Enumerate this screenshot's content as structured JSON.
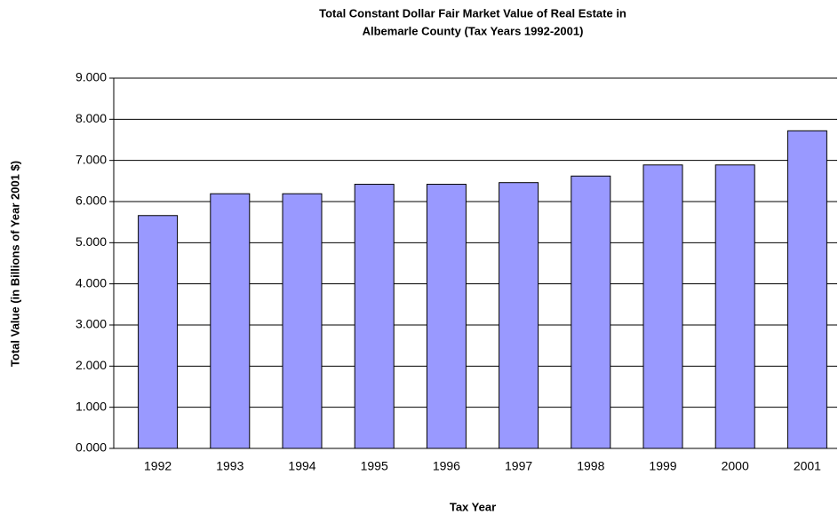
{
  "chart_data": {
    "type": "bar",
    "title": [
      "Total Constant Dollar Fair Market Value of Real Estate in",
      "Albemarle County (Tax Years 1992-2001)"
    ],
    "x_label": "Tax Year",
    "y_label": "Total Value (in Billions of Year 2001 $)",
    "categories": [
      "1992",
      "1993",
      "1994",
      "1995",
      "1996",
      "1997",
      "1998",
      "1999",
      "2000",
      "2001"
    ],
    "values": [
      5.66,
      6.19,
      6.19,
      6.42,
      6.42,
      6.46,
      6.62,
      6.89,
      6.89,
      7.72
    ],
    "color": "#9999ff",
    "ylim": [
      0,
      9
    ],
    "yticks": [
      {
        "value": 0,
        "label": "0.000"
      },
      {
        "value": 1,
        "label": "1.000"
      },
      {
        "value": 2,
        "label": "2.000"
      },
      {
        "value": 3,
        "label": "3.000"
      },
      {
        "value": 4,
        "label": "4.000"
      },
      {
        "value": 5,
        "label": "5.000"
      },
      {
        "value": 6,
        "label": "6.000"
      },
      {
        "value": 7,
        "label": "7.000"
      },
      {
        "value": 8,
        "label": "8.000"
      },
      {
        "value": 9,
        "label": "9.000"
      }
    ],
    "grid": true
  }
}
